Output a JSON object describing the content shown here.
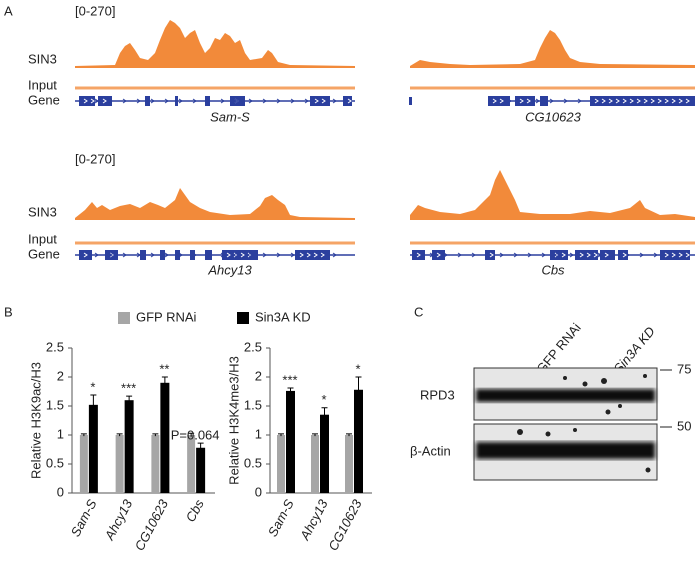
{
  "panel_labels": [
    "A",
    "B",
    "C"
  ],
  "tracks": [
    {
      "range": "[0-270]",
      "labels": [
        "SIN3",
        "Input",
        "Gene"
      ],
      "genes": [
        "Sam-S",
        "CG10623"
      ]
    },
    {
      "range": "[0-270]",
      "labels": [
        "SIN3",
        "Input",
        "Gene"
      ],
      "genes": [
        "Ahcy13",
        "Cbs"
      ]
    }
  ],
  "chart_data": [
    {
      "type": "bar",
      "ylabel": "Relative H3K9ac/H3",
      "categories": [
        "Sam-S",
        "Ahcy13",
        "CG10623",
        "Cbs"
      ],
      "series": [
        {
          "name": "GFP RNAi",
          "color": "#a6a6a6",
          "values": [
            1,
            1,
            1,
            1
          ],
          "errors": [
            0.02,
            0.02,
            0.02,
            0.03
          ]
        },
        {
          "name": "Sin3A KD",
          "color": "#000000",
          "values": [
            1.52,
            1.6,
            1.9,
            0.78
          ],
          "errors": [
            0.17,
            0.07,
            0.1,
            0.08
          ]
        }
      ],
      "significance": [
        "*",
        "***",
        "**",
        "P=0.064"
      ],
      "ylim": [
        0,
        2.5
      ],
      "yticks": [
        0,
        0.5,
        1,
        1.5,
        2,
        2.5
      ]
    },
    {
      "type": "bar",
      "ylabel": "Relative H3K4me3/H3",
      "categories": [
        "Sam-S",
        "Ahcy13",
        "CG10623"
      ],
      "series": [
        {
          "color": "#a6a6a6",
          "values": [
            1,
            1,
            1
          ],
          "errors": [
            0.02,
            0.02,
            0.02
          ]
        },
        {
          "color": "#000000",
          "values": [
            1.76,
            1.35,
            1.78
          ],
          "errors": [
            0.05,
            0.12,
            0.22
          ]
        }
      ],
      "significance": [
        "***",
        "*",
        "*"
      ],
      "ylim": [
        0,
        2.5
      ],
      "yticks": [
        0,
        0.5,
        1,
        1.5,
        2,
        2.5
      ]
    }
  ],
  "blot": {
    "columns": [
      "GFP RNAi",
      "Sin3A KD"
    ],
    "rows": [
      "RPD3",
      "β-Actin"
    ],
    "markers": [
      "75",
      "50"
    ]
  }
}
